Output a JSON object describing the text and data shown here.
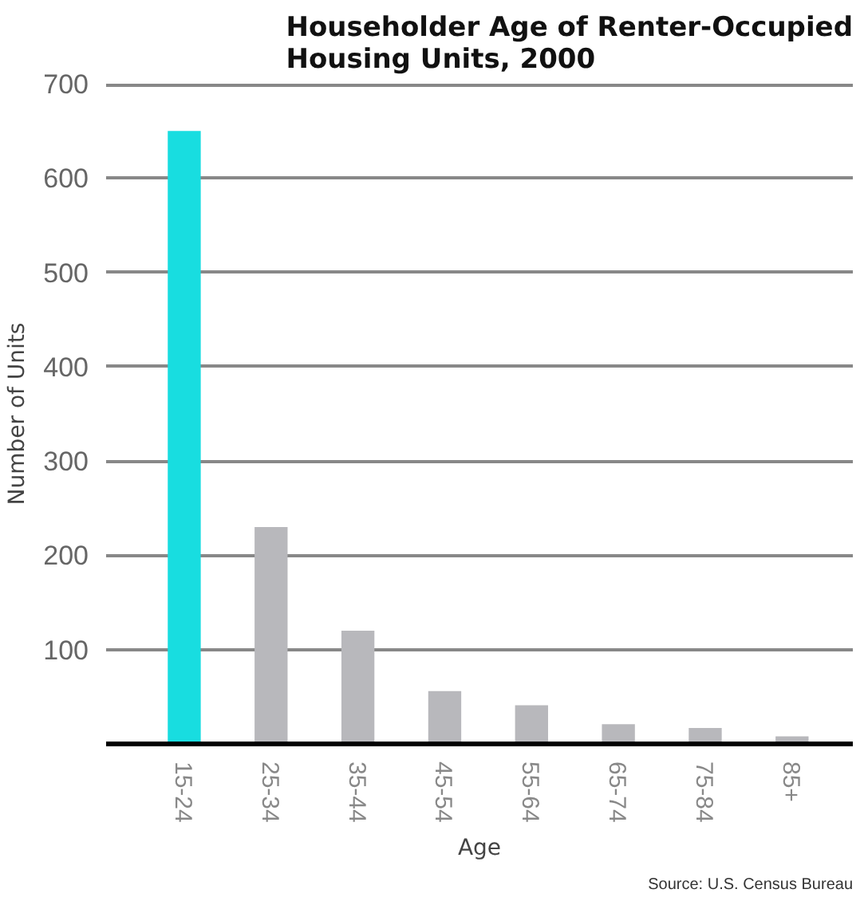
{
  "chart_data": {
    "type": "bar",
    "title": "Householder Age of Renter-Occupied\nHousing Units, 2000",
    "xlabel": "Age",
    "ylabel": "Number of Units",
    "categories": [
      "15-24",
      "25-34",
      "35-44",
      "45-54",
      "55-64",
      "65-74",
      "75-84",
      "85+"
    ],
    "values": [
      650,
      230,
      120,
      56,
      41,
      21,
      17,
      8
    ],
    "colors": [
      "#18dde0",
      "#b8b8bc",
      "#b8b8bc",
      "#b8b8bc",
      "#b8b8bc",
      "#b8b8bc",
      "#b8b8bc",
      "#b8b8bc"
    ],
    "ylim": [
      0,
      700
    ],
    "yticks": [
      100,
      200,
      300,
      400,
      500,
      600,
      700
    ],
    "grid": "y",
    "annotations": [
      "Source: U.S. Census Bureau"
    ]
  }
}
